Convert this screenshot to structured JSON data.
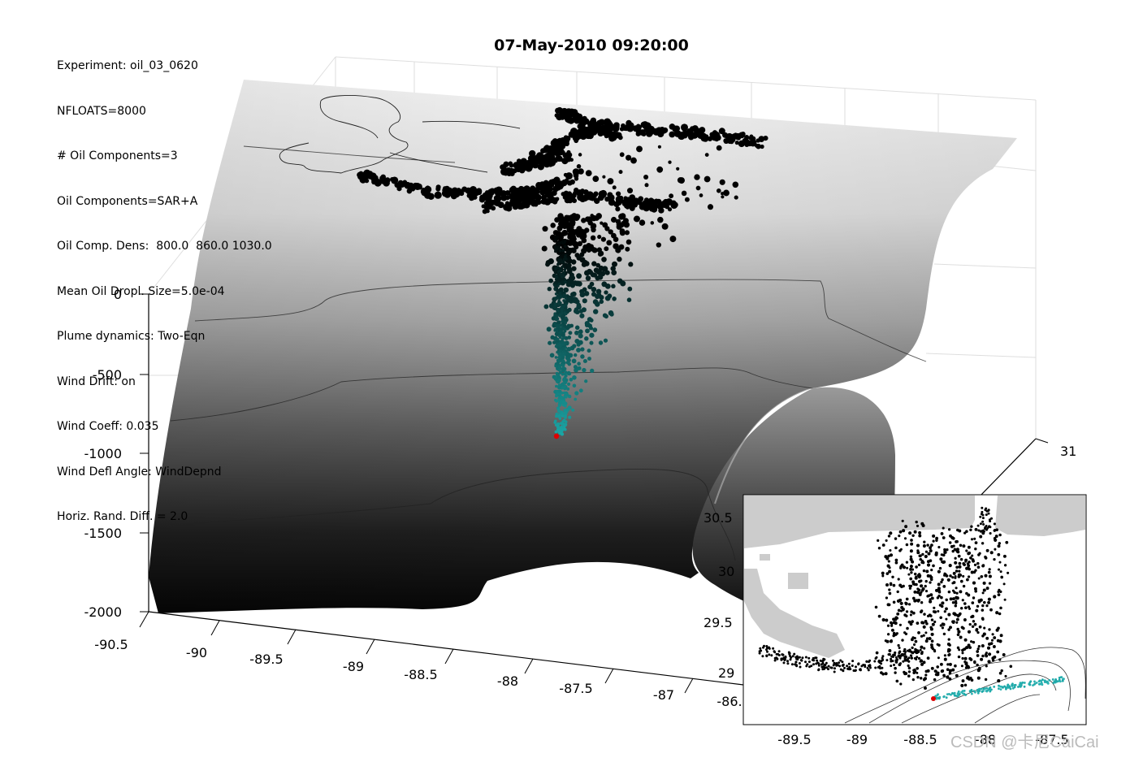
{
  "title": "07-May-2010 09:20:00",
  "info_lines": [
    "Experiment: oil_03_0620",
    "NFLOATS=8000",
    "# Oil Components=3",
    "Oil Components=SAR+A",
    "Oil Comp. Dens:  800.0  860.0 1030.0",
    "Mean Oil Dropl. Size=5.0e-04",
    "Plume dynamics: Two-Eqn",
    "Wind Drift: on",
    "Wind Coeff: 0.035",
    "Wind Defl Angle: WindDepnd",
    "Horiz. Rand. Diff. = 2.0"
  ],
  "watermark": "CSDN @卡尼CaiCai",
  "colors": {
    "surface_top": "#f2f2f2",
    "surface_bottom": "#0d0d0d",
    "oil_surface": "#000000",
    "oil_deep": "#1aa5a5",
    "source": "#dd0000",
    "land": "#cccccc"
  },
  "chart_data": [
    {
      "type": "scatter",
      "view": "3d",
      "title": "07-May-2010 09:20:00",
      "z_ticks": [
        "0",
        "-500",
        "-1000",
        "-1500",
        "-2000"
      ],
      "zlim": [
        -2000,
        0
      ],
      "x_ticks": [
        "-90.5",
        "-90",
        "-89.5",
        "-89",
        "-88.5",
        "-88",
        "-87.5",
        "-87",
        "-86."
      ],
      "y_ticks": [
        "29",
        "29.5",
        "30",
        "30.5",
        "31"
      ],
      "grid": true,
      "source_location": {
        "lon": -88.37,
        "lat": 28.74,
        "depth": -1500
      },
      "series": [
        {
          "values": [
            -88.3,
            -88.0,
            -87.8,
            -88.9,
            -89.3,
            -87.7
          ]
        },
        {
          "values": [
            -1500,
            -1200,
            -800,
            -400,
            -100
          ]
        }
      ]
    },
    {
      "type": "scatter",
      "view": "map-inset",
      "x_ticks": [
        "-89.5",
        "-89",
        "-88.5",
        "-88",
        "-87.5"
      ],
      "y_ticks": [
        "29",
        "29.5",
        "30",
        "30.5"
      ],
      "source_location": {
        "lon": -88.37,
        "lat": 28.74
      }
    }
  ]
}
